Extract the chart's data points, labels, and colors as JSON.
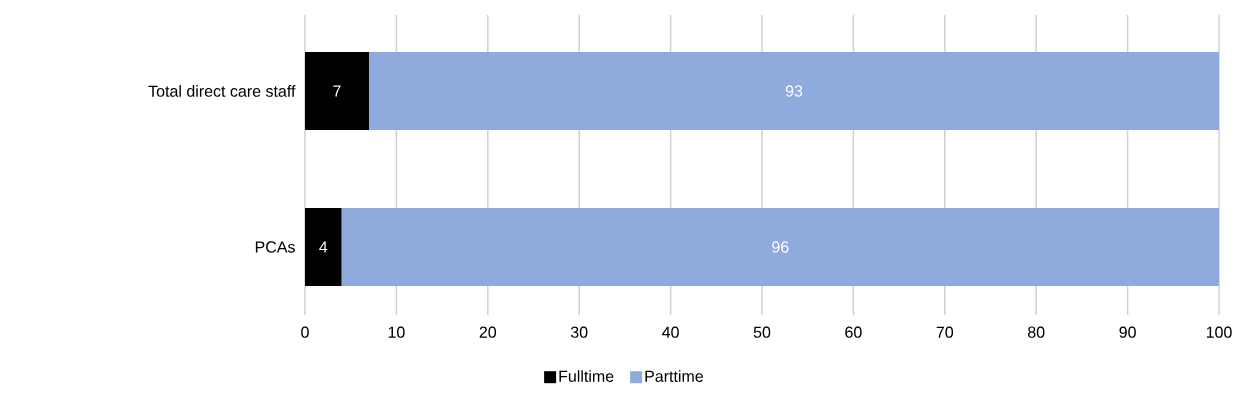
{
  "chart_data": {
    "type": "bar",
    "orientation": "horizontal",
    "stacked": true,
    "data_labels": true,
    "grid": "x",
    "legend": "bottom",
    "categories": [
      "Total direct care staff",
      "PCAs"
    ],
    "series": [
      {
        "name": "Fulltime",
        "color": "#000000",
        "values": [
          7,
          4
        ]
      },
      {
        "name": "Parttime",
        "color": "#8faadc",
        "values": [
          93,
          96
        ]
      }
    ],
    "xlim": [
      0,
      100
    ],
    "xticks": [
      0,
      10,
      20,
      30,
      40,
      50,
      60,
      70,
      80,
      90,
      100
    ]
  }
}
